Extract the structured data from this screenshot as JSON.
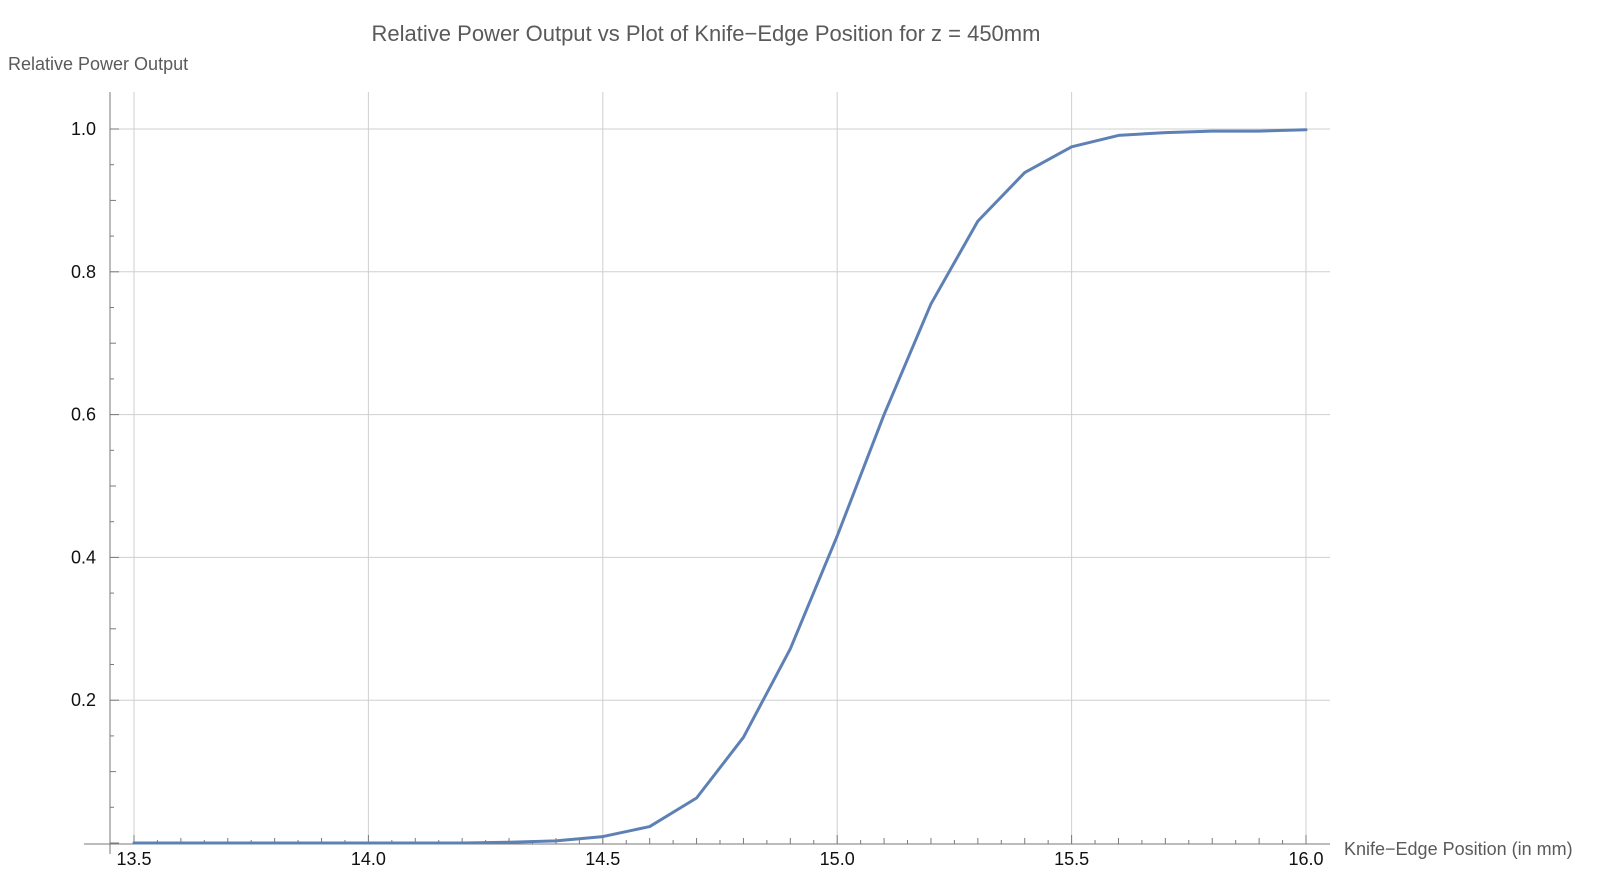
{
  "colors": {
    "series": "#5e81b5",
    "grid": "#cfcfcf",
    "axis": "#7a7a7a"
  },
  "chart_data": {
    "type": "line",
    "title": "Relative Power Output vs Plot of Knife−Edge Position for z = 450mm",
    "xlabel": "Knife−Edge Position (in mm)",
    "ylabel": "Relative Power Output",
    "xlim": [
      13.5,
      16.0
    ],
    "ylim": [
      0.0,
      1.0
    ],
    "grid": true,
    "x_ticks": [
      {
        "value": 13.5,
        "label": "13.5"
      },
      {
        "value": 14.0,
        "label": "14.0"
      },
      {
        "value": 14.5,
        "label": "14.5"
      },
      {
        "value": 15.0,
        "label": "15.0"
      },
      {
        "value": 15.5,
        "label": "15.5"
      },
      {
        "value": 16.0,
        "label": "16.0"
      }
    ],
    "y_ticks": [
      {
        "value": 0.2,
        "label": "0.2"
      },
      {
        "value": 0.4,
        "label": "0.4"
      },
      {
        "value": 0.6,
        "label": "0.6"
      },
      {
        "value": 0.8,
        "label": "0.8"
      },
      {
        "value": 1.0,
        "label": "1.0"
      }
    ],
    "series": [
      {
        "x": [
          13.5,
          13.6,
          13.7,
          13.8,
          13.9,
          14.0,
          14.1,
          14.2,
          14.3,
          14.4,
          14.5,
          14.6,
          14.7,
          14.8,
          14.9,
          15.0,
          15.1,
          15.2,
          15.3,
          15.4,
          15.5,
          15.6,
          15.7,
          15.8,
          15.9,
          16.0
        ],
        "y": [
          0.0,
          0.0,
          0.0,
          0.0,
          0.0,
          0.0,
          0.0,
          0.0,
          0.001,
          0.003,
          0.009,
          0.023,
          0.063,
          0.148,
          0.272,
          0.43,
          0.6,
          0.755,
          0.871,
          0.939,
          0.975,
          0.991,
          0.995,
          0.997,
          0.997,
          0.999
        ]
      }
    ]
  }
}
